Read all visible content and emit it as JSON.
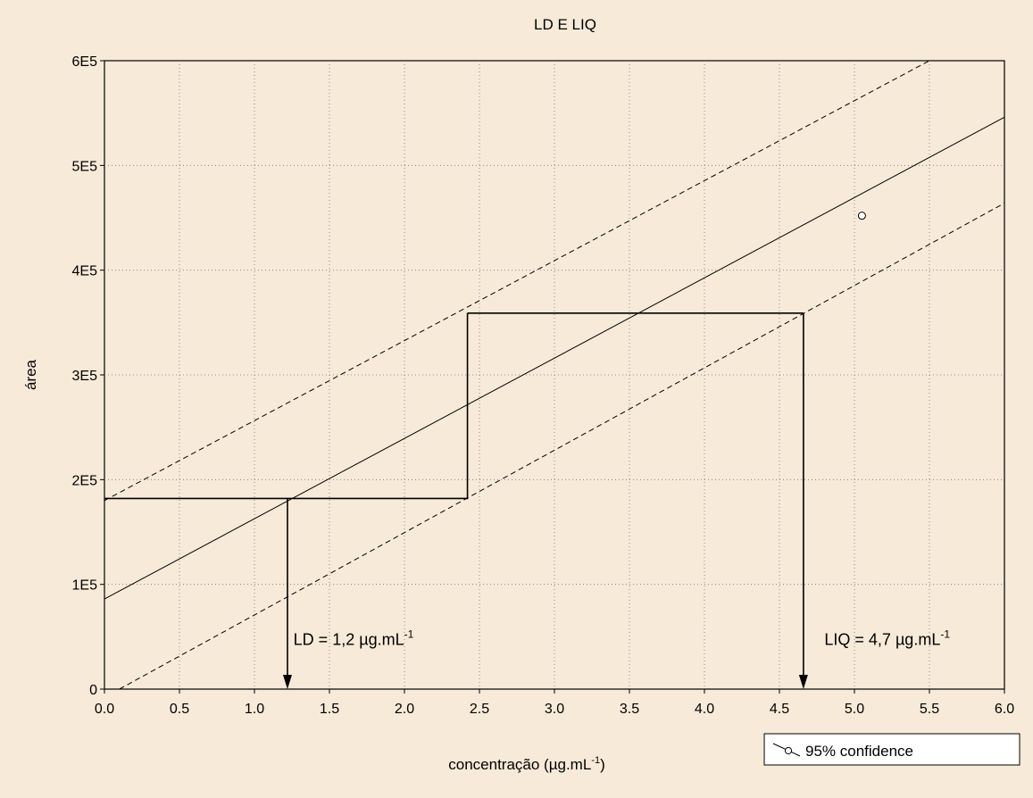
{
  "chart_data": {
    "type": "line",
    "title": "LD E LIQ",
    "xlabel": "concentração (µg.mL",
    "xlabel_sup": "-1",
    "xlabel_suffix": ")",
    "ylabel": "área",
    "xlim": [
      0.0,
      6.0
    ],
    "ylim": [
      0,
      600000
    ],
    "x_ticks": [
      0.0,
      0.5,
      1.0,
      1.5,
      2.0,
      2.5,
      3.0,
      3.5,
      4.0,
      4.5,
      5.0,
      5.5,
      6.0
    ],
    "x_tick_labels": [
      "0.0",
      "0.5",
      "1.0",
      "1.5",
      "2.0",
      "2.5",
      "3.0",
      "3.5",
      "4.0",
      "4.5",
      "5.0",
      "5.5",
      "6.0"
    ],
    "y_ticks": [
      0,
      100000,
      200000,
      300000,
      400000,
      500000,
      600000
    ],
    "y_tick_labels": [
      "0",
      "1E5",
      "2E5",
      "3E5",
      "4E5",
      "5E5",
      "6E5"
    ],
    "grid": true,
    "legend": {
      "label": "95% confidence",
      "placement": "bottom-right, below plot"
    },
    "series": [
      {
        "style": "solid",
        "x": [
          0.0,
          6.0
        ],
        "y": [
          86000,
          546000
        ]
      },
      {
        "style": "dashed",
        "x": [
          0.0,
          5.5
        ],
        "y": [
          180000,
          600000
        ]
      },
      {
        "style": "dashed",
        "x": [
          0.1,
          6.0
        ],
        "y": [
          0,
          464000
        ]
      }
    ],
    "points": [
      {
        "x": 5.05,
        "y": 452000
      }
    ],
    "construction_lines": [
      {
        "x": [
          0.0,
          2.42,
          2.42
        ],
        "y": [
          182000,
          182000,
          359000
        ]
      },
      {
        "x": [
          2.42,
          4.66
        ],
        "y": [
          359000,
          359000
        ]
      }
    ],
    "arrows": [
      {
        "x": 1.22,
        "y_from": 182000,
        "y_to": 0
      },
      {
        "x": 4.66,
        "y_from": 359000,
        "y_to": 0
      }
    ],
    "annotations": [
      {
        "text": "LD = 1,2 µg.mL",
        "sup": "-1",
        "x": 1.26,
        "y": 42000
      },
      {
        "text": "LIQ = 4,7 µg.mL",
        "sup": "-1",
        "x": 4.8,
        "y": 42000
      }
    ]
  }
}
